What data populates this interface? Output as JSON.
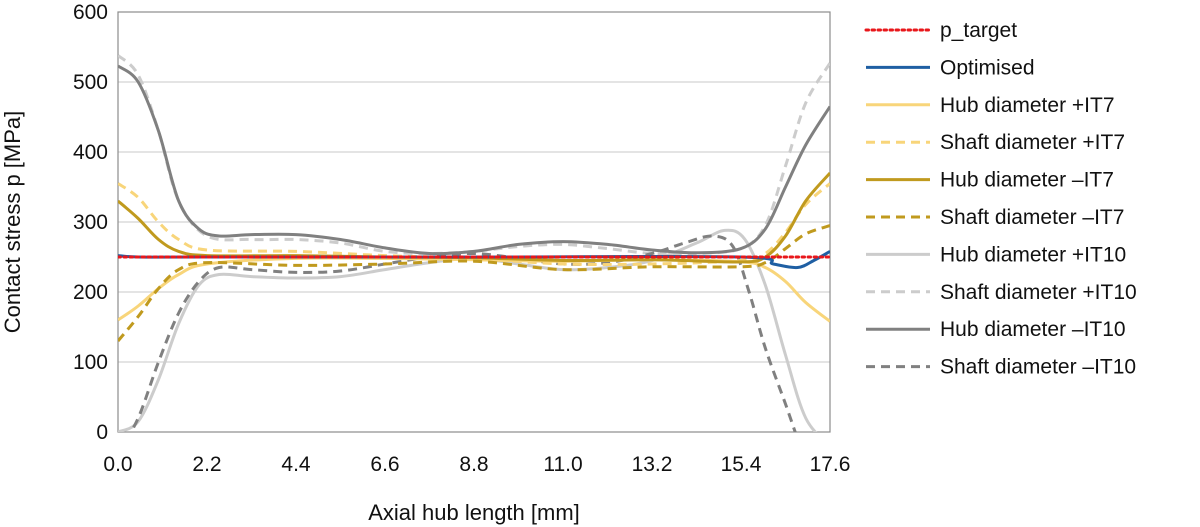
{
  "chart_data": {
    "type": "line",
    "xlabel": "Axial hub length [mm]",
    "ylabel": "Contact stress p [MPa]",
    "xlim": [
      0,
      17.6
    ],
    "ylim": [
      0,
      600
    ],
    "x_ticks": [
      "0.0",
      "2.2",
      "4.4",
      "6.6",
      "8.8",
      "11.0",
      "13.2",
      "15.4",
      "17.6"
    ],
    "y_ticks": [
      "0",
      "100",
      "200",
      "300",
      "400",
      "500",
      "600"
    ],
    "grid": "horizontal",
    "legend_position": "right",
    "series": [
      {
        "name": "p_target",
        "color": "#e8171b",
        "dash": "dotted",
        "points": [
          [
            0.0,
            250
          ],
          [
            17.6,
            250
          ]
        ]
      },
      {
        "name": "Optimised",
        "color": "#1f5fa3",
        "dash": "solid",
        "points": [
          [
            0.0,
            252
          ],
          [
            0.5,
            250
          ],
          [
            2.2,
            250
          ],
          [
            8.8,
            250
          ],
          [
            15.4,
            250
          ],
          [
            16.2,
            240
          ],
          [
            16.8,
            235
          ],
          [
            17.2,
            245
          ],
          [
            17.6,
            258
          ]
        ]
      },
      {
        "name": "Hub diameter +IT7",
        "color": "#f8d57a",
        "dash": "solid",
        "points": [
          [
            0.0,
            160
          ],
          [
            0.5,
            180
          ],
          [
            1.0,
            205
          ],
          [
            1.5,
            225
          ],
          [
            2.2,
            240
          ],
          [
            4.4,
            248
          ],
          [
            6.6,
            248
          ],
          [
            8.8,
            246
          ],
          [
            11.0,
            244
          ],
          [
            13.2,
            246
          ],
          [
            15.4,
            243
          ],
          [
            16.0,
            235
          ],
          [
            16.5,
            215
          ],
          [
            17.0,
            185
          ],
          [
            17.6,
            158
          ]
        ]
      },
      {
        "name": "Shaft diameter +IT7",
        "color": "#f8d57a",
        "dash": "dashed",
        "points": [
          [
            0.0,
            355
          ],
          [
            0.5,
            335
          ],
          [
            1.0,
            300
          ],
          [
            1.5,
            275
          ],
          [
            2.2,
            260
          ],
          [
            4.4,
            258
          ],
          [
            6.6,
            252
          ],
          [
            8.8,
            248
          ],
          [
            11.0,
            240
          ],
          [
            13.2,
            240
          ],
          [
            15.4,
            245
          ],
          [
            16.0,
            255
          ],
          [
            16.5,
            285
          ],
          [
            17.0,
            325
          ],
          [
            17.6,
            355
          ]
        ]
      },
      {
        "name": "Hub diameter –IT7",
        "color": "#c09a1e",
        "dash": "solid",
        "points": [
          [
            0.0,
            330
          ],
          [
            0.5,
            305
          ],
          [
            1.0,
            275
          ],
          [
            1.5,
            258
          ],
          [
            2.2,
            252
          ],
          [
            4.4,
            252
          ],
          [
            6.6,
            250
          ],
          [
            8.8,
            249
          ],
          [
            11.0,
            245
          ],
          [
            13.2,
            246
          ],
          [
            15.4,
            243
          ],
          [
            16.0,
            250
          ],
          [
            16.5,
            280
          ],
          [
            17.0,
            330
          ],
          [
            17.6,
            370
          ]
        ]
      },
      {
        "name": "Shaft diameter –IT7",
        "color": "#c09a1e",
        "dash": "dashed",
        "points": [
          [
            0.0,
            130
          ],
          [
            0.5,
            165
          ],
          [
            1.0,
            205
          ],
          [
            1.5,
            232
          ],
          [
            2.2,
            242
          ],
          [
            4.4,
            238
          ],
          [
            6.6,
            240
          ],
          [
            8.8,
            244
          ],
          [
            11.0,
            232
          ],
          [
            13.2,
            236
          ],
          [
            15.4,
            236
          ],
          [
            16.0,
            242
          ],
          [
            16.5,
            262
          ],
          [
            17.0,
            283
          ],
          [
            17.6,
            295
          ]
        ]
      },
      {
        "name": "Hub diameter +IT10",
        "color": "#cccccc",
        "dash": "solid",
        "points": [
          [
            0.0,
            0
          ],
          [
            0.5,
            15
          ],
          [
            1.0,
            75
          ],
          [
            1.5,
            155
          ],
          [
            2.0,
            210
          ],
          [
            2.5,
            225
          ],
          [
            3.3,
            222
          ],
          [
            4.4,
            220
          ],
          [
            5.5,
            222
          ],
          [
            6.6,
            232
          ],
          [
            7.7,
            242
          ],
          [
            8.8,
            248
          ],
          [
            9.9,
            240
          ],
          [
            11.0,
            232
          ],
          [
            12.1,
            235
          ],
          [
            13.2,
            245
          ],
          [
            14.3,
            270
          ],
          [
            15.0,
            288
          ],
          [
            15.5,
            275
          ],
          [
            16.0,
            210
          ],
          [
            16.5,
            110
          ],
          [
            17.0,
            20
          ],
          [
            17.6,
            -20
          ]
        ]
      },
      {
        "name": "Shaft diameter +IT10",
        "color": "#cccccc",
        "dash": "dashed",
        "points": [
          [
            0.0,
            538
          ],
          [
            0.5,
            510
          ],
          [
            1.0,
            430
          ],
          [
            1.5,
            330
          ],
          [
            2.2,
            280
          ],
          [
            3.3,
            275
          ],
          [
            4.4,
            275
          ],
          [
            5.5,
            270
          ],
          [
            6.6,
            258
          ],
          [
            7.7,
            255
          ],
          [
            8.8,
            258
          ],
          [
            9.9,
            265
          ],
          [
            11.0,
            268
          ],
          [
            12.1,
            262
          ],
          [
            13.2,
            255
          ],
          [
            14.3,
            255
          ],
          [
            15.4,
            262
          ],
          [
            16.0,
            295
          ],
          [
            16.5,
            380
          ],
          [
            17.0,
            470
          ],
          [
            17.6,
            527
          ]
        ]
      },
      {
        "name": "Hub diameter –IT10",
        "color": "#808080",
        "dash": "solid",
        "points": [
          [
            0.0,
            523
          ],
          [
            0.5,
            500
          ],
          [
            1.0,
            430
          ],
          [
            1.5,
            330
          ],
          [
            2.0,
            290
          ],
          [
            2.5,
            280
          ],
          [
            3.3,
            282
          ],
          [
            4.4,
            282
          ],
          [
            5.5,
            275
          ],
          [
            6.6,
            263
          ],
          [
            7.7,
            255
          ],
          [
            8.8,
            258
          ],
          [
            9.9,
            268
          ],
          [
            11.0,
            272
          ],
          [
            12.1,
            268
          ],
          [
            13.2,
            260
          ],
          [
            14.3,
            256
          ],
          [
            15.4,
            262
          ],
          [
            16.0,
            290
          ],
          [
            16.5,
            350
          ],
          [
            17.0,
            410
          ],
          [
            17.6,
            465
          ]
        ]
      },
      {
        "name": "Shaft diameter –IT10",
        "color": "#808080",
        "dash": "dashed",
        "points": [
          [
            0.0,
            -30
          ],
          [
            0.5,
            20
          ],
          [
            1.0,
            100
          ],
          [
            1.5,
            170
          ],
          [
            2.0,
            215
          ],
          [
            2.5,
            235
          ],
          [
            3.3,
            232
          ],
          [
            4.4,
            228
          ],
          [
            5.5,
            230
          ],
          [
            6.6,
            240
          ],
          [
            7.7,
            250
          ],
          [
            8.8,
            255
          ],
          [
            9.9,
            248
          ],
          [
            11.0,
            240
          ],
          [
            12.1,
            242
          ],
          [
            13.2,
            255
          ],
          [
            14.0,
            270
          ],
          [
            14.7,
            280
          ],
          [
            15.2,
            265
          ],
          [
            15.6,
            200
          ],
          [
            16.0,
            120
          ],
          [
            16.5,
            40
          ],
          [
            16.8,
            -10
          ],
          [
            17.0,
            -40
          ]
        ]
      }
    ]
  }
}
